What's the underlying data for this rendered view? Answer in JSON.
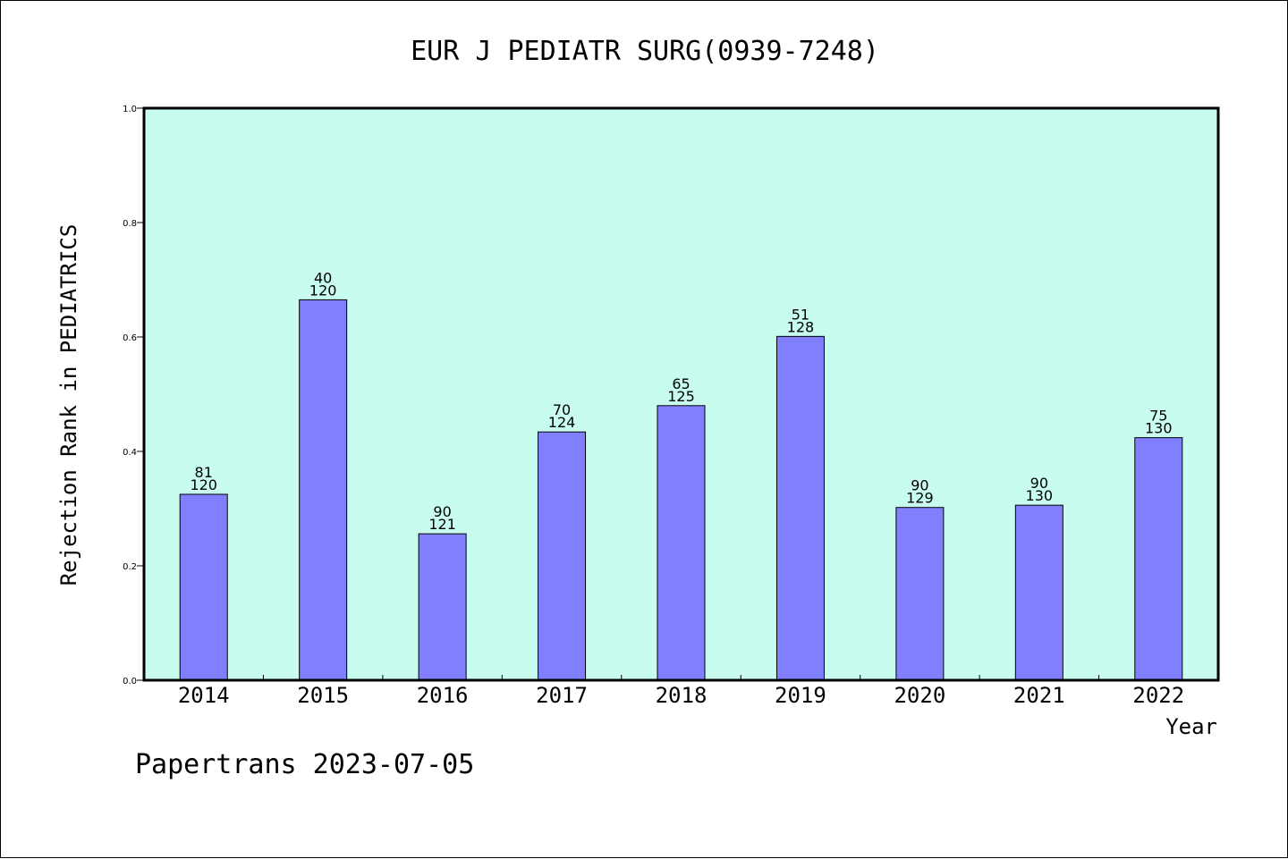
{
  "colors": {
    "plot_background": "#c8fcee",
    "bar_fill": "#8080ff",
    "bar_stroke": "#000000",
    "frame": "#000000"
  },
  "footer": "Papertrans 2023-07-05",
  "chart_data": {
    "type": "bar",
    "title": "EUR J PEDIATR SURG(0939-7248)",
    "xlabel": "Year",
    "ylabel": "Rejection Rank in PEDIATRICS",
    "ylim": [
      0.0,
      1.0
    ],
    "yticks": [
      "0.0",
      "0.2",
      "0.4",
      "0.6",
      "0.8",
      "1.0"
    ],
    "grid": false,
    "legend": "none",
    "categories": [
      "2014",
      "2015",
      "2016",
      "2017",
      "2018",
      "2019",
      "2020",
      "2021",
      "2022"
    ],
    "values": [
      0.325,
      0.665,
      0.256,
      0.434,
      0.48,
      0.601,
      0.302,
      0.306,
      0.424
    ],
    "bar_labels_top": [
      "81",
      "40",
      "90",
      "70",
      "65",
      "51",
      "90",
      "90",
      "75"
    ],
    "bar_labels_bottom": [
      "120",
      "120",
      "121",
      "124",
      "125",
      "128",
      "129",
      "130",
      "130"
    ]
  }
}
